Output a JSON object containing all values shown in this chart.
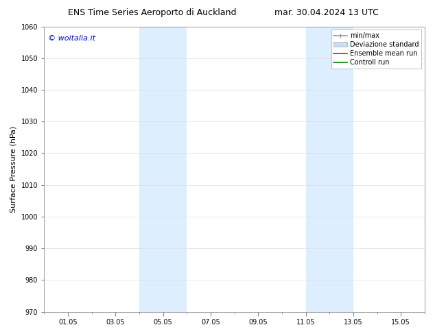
{
  "title_left": "ENS Time Series Aeroporto di Auckland",
  "title_right": "mar. 30.04.2024 13 UTC",
  "ylabel": "Surface Pressure (hPa)",
  "ylim": [
    970,
    1060
  ],
  "yticks": [
    970,
    980,
    990,
    1000,
    1010,
    1020,
    1030,
    1040,
    1050,
    1060
  ],
  "xtick_labels": [
    "01.05",
    "03.05",
    "05.05",
    "07.05",
    "09.05",
    "11.05",
    "13.05",
    "15.05"
  ],
  "xtick_positions": [
    1,
    3,
    5,
    7,
    9,
    11,
    13,
    15
  ],
  "xlim": [
    0,
    16
  ],
  "minor_xtick_positions": [
    1,
    2,
    3,
    4,
    5,
    6,
    7,
    8,
    9,
    10,
    11,
    12,
    13,
    14,
    15,
    16
  ],
  "shaded_regions": [
    {
      "x_start": 4,
      "x_end": 6,
      "color": "#ddeeff"
    },
    {
      "x_start": 11,
      "x_end": 13,
      "color": "#ddeeff"
    }
  ],
  "watermark_text": "© woitalia.it",
  "watermark_color": "#0000cc",
  "legend_entries": [
    {
      "label": "min/max",
      "color": "#999999",
      "lw": 1.2
    },
    {
      "label": "Deviazione standard",
      "color": "#c8dff0",
      "lw": 5
    },
    {
      "label": "Ensemble mean run",
      "color": "#ff0000",
      "lw": 1.2
    },
    {
      "label": "Controll run",
      "color": "#008000",
      "lw": 1.2
    }
  ],
  "bg_color": "#ffffff",
  "grid_color": "#dddddd",
  "title_fontsize": 9,
  "tick_fontsize": 7,
  "label_fontsize": 8,
  "watermark_fontsize": 8,
  "legend_fontsize": 7
}
